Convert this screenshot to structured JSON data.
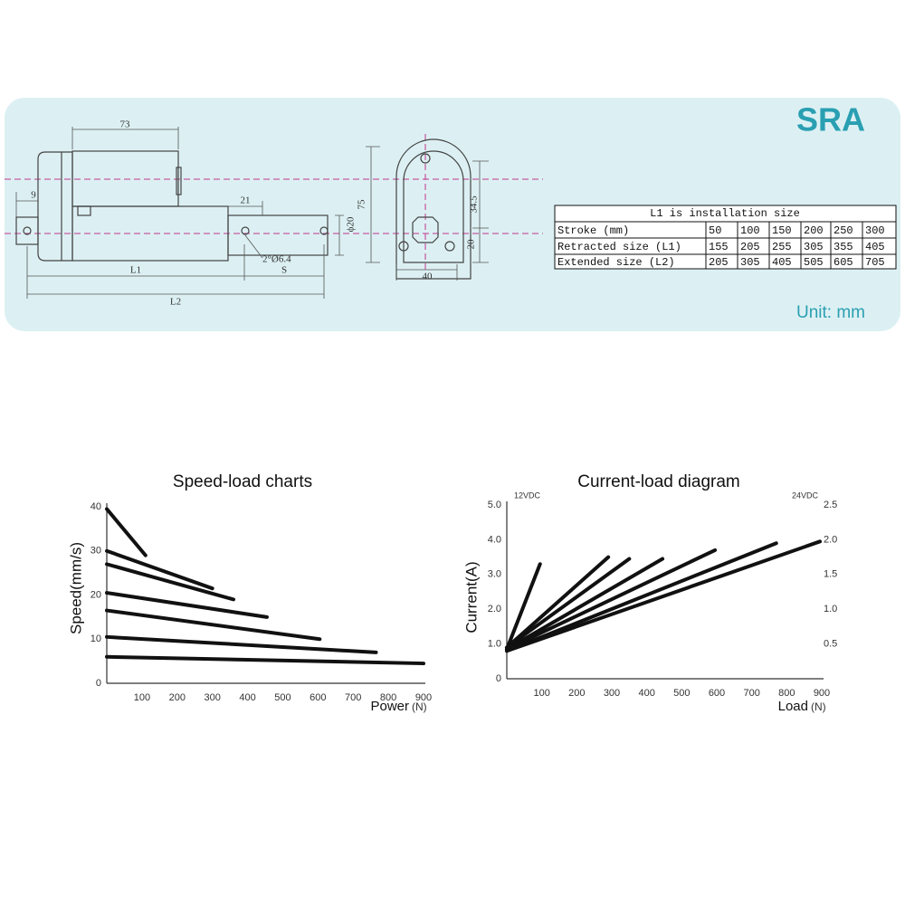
{
  "header": {
    "title": "SRA",
    "unit": "Unit: mm"
  },
  "drawing": {
    "labels": [
      "73",
      "9",
      "21",
      "ϕ20",
      "2°Ø6.4",
      "S",
      "L1",
      "L2",
      "75",
      "34.5",
      "20",
      "40"
    ]
  },
  "table": {
    "caption": "L1 is installation size",
    "rows": [
      [
        "Stroke (mm)",
        50,
        100,
        150,
        200,
        250,
        300
      ],
      [
        "Retracted size (L1)",
        155,
        205,
        255,
        305,
        355,
        405
      ],
      [
        "Extended size (L2)",
        205,
        305,
        405,
        505,
        605,
        705
      ]
    ]
  },
  "chart_data": [
    {
      "type": "line",
      "title": "Speed-load charts",
      "x_label": "Power",
      "x_unit": "(N)",
      "y_label": "Speed(mm/s)",
      "color": "#111111",
      "xlim": [
        0,
        900
      ],
      "ylim": [
        0,
        40
      ],
      "xticks": [
        100,
        200,
        300,
        400,
        500,
        600,
        700,
        800,
        900
      ],
      "yticks": [
        0,
        10,
        20,
        30,
        40
      ],
      "series": [
        {
          "x": [
            0,
            110
          ],
          "values": [
            39.5,
            29
          ]
        },
        {
          "x": [
            0,
            300
          ],
          "values": [
            30,
            21.5
          ]
        },
        {
          "x": [
            0,
            360
          ],
          "values": [
            27,
            19
          ]
        },
        {
          "x": [
            0,
            455
          ],
          "values": [
            20.5,
            15
          ]
        },
        {
          "x": [
            0,
            605
          ],
          "values": [
            16.5,
            10
          ]
        },
        {
          "x": [
            0,
            765
          ],
          "values": [
            10.5,
            7
          ]
        },
        {
          "x": [
            0,
            900
          ],
          "values": [
            6,
            4.5
          ]
        }
      ]
    },
    {
      "type": "line",
      "title": "Current-load diagram",
      "x_label": "Load",
      "x_unit": "(N)",
      "y_label": "Current(A)",
      "y_axis_label": "12VDC",
      "y2_axis_label": "24VDC",
      "color": "#111111",
      "xlim": [
        0,
        900
      ],
      "ylim": [
        0,
        5
      ],
      "y2lim": [
        0,
        2.5
      ],
      "xticks": [
        100,
        200,
        300,
        400,
        500,
        600,
        700,
        800,
        900
      ],
      "yticks": [
        0,
        {
          "value": 1,
          "label": "1.0"
        },
        {
          "value": 2,
          "label": "2.0"
        },
        {
          "value": 3,
          "label": "3.0"
        },
        {
          "value": 4,
          "label": "4.0"
        },
        {
          "value": 5,
          "label": "5.0"
        }
      ],
      "y2ticks": [
        {
          "value": 0.5,
          "label": "0.5"
        },
        {
          "value": 1,
          "label": "1.0"
        },
        {
          "value": 1.5,
          "label": "1.5"
        },
        {
          "value": 2,
          "label": "2.0"
        },
        {
          "value": 2.5,
          "label": "2.5"
        }
      ],
      "series": [
        {
          "x": [
            0,
            95
          ],
          "values": [
            0.85,
            3.3
          ]
        },
        {
          "x": [
            0,
            290
          ],
          "values": [
            0.9,
            3.5
          ]
        },
        {
          "x": [
            0,
            350
          ],
          "values": [
            0.9,
            3.45
          ]
        },
        {
          "x": [
            0,
            445
          ],
          "values": [
            0.85,
            3.45
          ]
        },
        {
          "x": [
            0,
            595
          ],
          "values": [
            0.85,
            3.7
          ]
        },
        {
          "x": [
            0,
            770
          ],
          "values": [
            0.8,
            3.9
          ]
        },
        {
          "x": [
            0,
            895
          ],
          "values": [
            0.8,
            3.95
          ]
        }
      ]
    }
  ]
}
